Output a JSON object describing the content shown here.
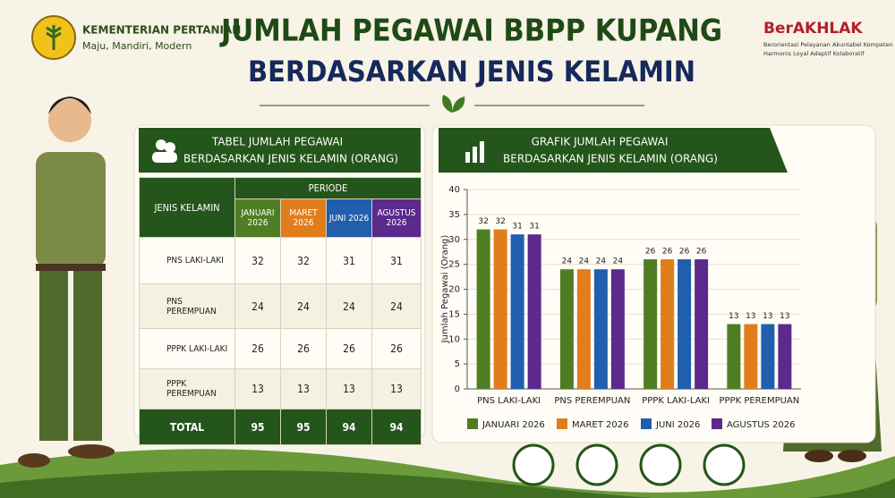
{
  "header": {
    "org_name": "KEMENTERIAN PERTANIAN",
    "org_motto": "Maju, Mandiri, Modern",
    "title_line1": "JUMLAH PEGAWAI BBPP KUPANG",
    "title_line2": "BERDASARKAN JENIS KELAMIN",
    "brand": "BerAKHLAK",
    "brand_line1": "Berorientasi Pelayanan Akuntabel Kompeten",
    "brand_line2": "Harmonis Loyal Adaptif Kolaboratif"
  },
  "table": {
    "title_line1": "TABEL JUMLAH PEGAWAI",
    "title_line2": "BERDASARKAN JENIS KELAMIN (ORANG)",
    "label_header": "JENIS KELAMIN",
    "group_header": "PERIODE",
    "periods": [
      "JANUARI 2026",
      "MARET 2026",
      "JUNI 2026",
      "AGUSTUS 2026"
    ],
    "rows": [
      [
        "PNS LAKI-LAKI",
        "32",
        "32",
        "31",
        "31"
      ],
      [
        "PNS PEREMPUAN",
        "24",
        "24",
        "24",
        "24"
      ],
      [
        "PPPK LAKI-LAKI",
        "26",
        "26",
        "26",
        "26"
      ],
      [
        "PPPK PEREMPUAN",
        "13",
        "13",
        "13",
        "13"
      ],
      [
        "TOTAL",
        "95",
        "95",
        "94",
        "94"
      ]
    ]
  },
  "chart_data": {
    "type": "bar",
    "title": "GRAFIK JUMLAH PEGAWAI",
    "subtitle": "BERDASARKAN JENIS KELAMIN (ORANG)",
    "y_label": "Jumlah Pegawai (Orang)",
    "categories": [
      "PNS LAKI-LAKI",
      "PNS PEREMPUAN",
      "PPPK LAKI-LAKI",
      "PPPK PEREMPUAN"
    ],
    "series": [
      {
        "name": "JANUARI 2026",
        "color": "#4f7d23",
        "values": [
          32,
          24,
          26,
          13
        ]
      },
      {
        "name": "MARET 2026",
        "color": "#e27d1c",
        "values": [
          32,
          24,
          26,
          13
        ]
      },
      {
        "name": "JUNI 2026",
        "color": "#1f5fae",
        "values": [
          31,
          24,
          26,
          13
        ]
      },
      {
        "name": "AGUSTUS 2026",
        "color": "#5b2a8c",
        "values": [
          31,
          24,
          26,
          13
        ]
      }
    ],
    "ylim": [
      0,
      40
    ],
    "yticks": [
      0,
      5,
      10,
      15,
      20,
      25,
      30,
      35,
      40
    ],
    "grid": true,
    "legend": "bottom"
  }
}
